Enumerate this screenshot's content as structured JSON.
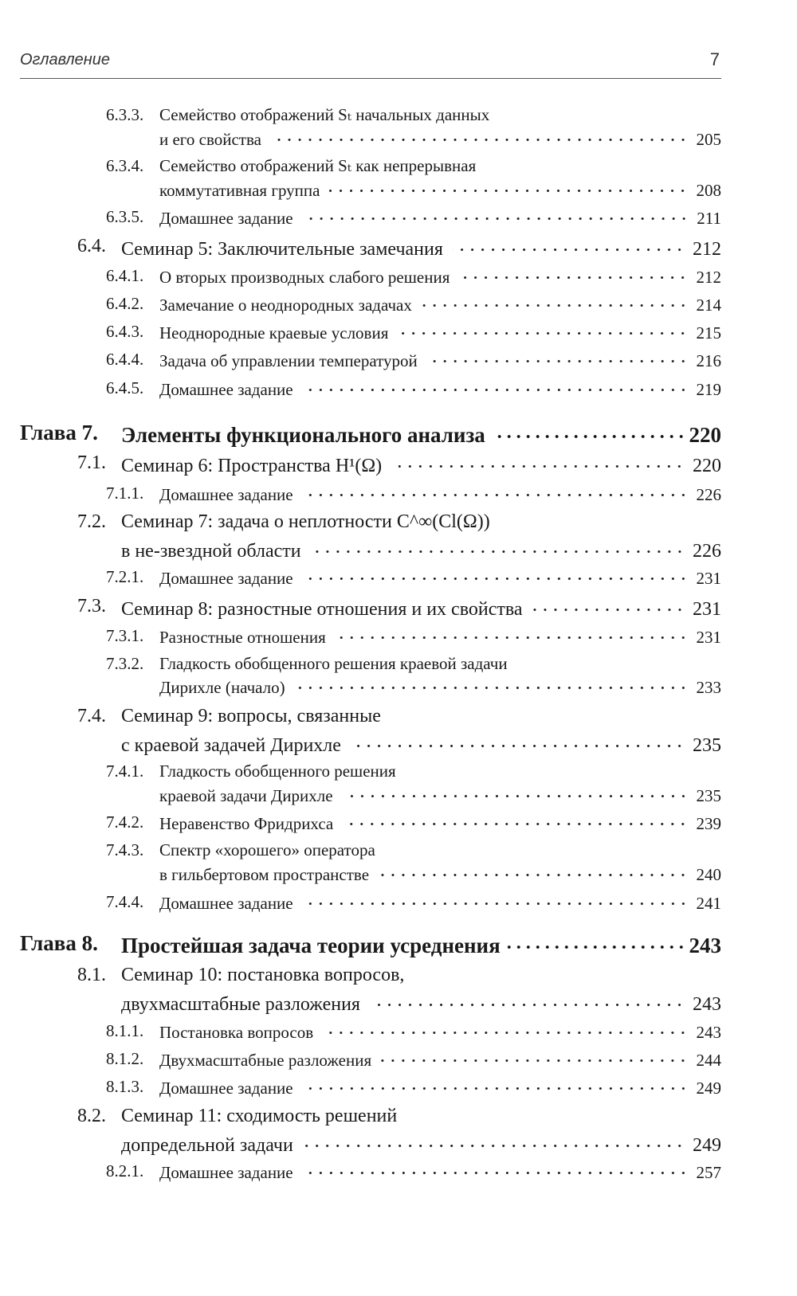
{
  "header": {
    "title": "Оглавление",
    "page_number": "7"
  },
  "toc": {
    "entries": [
      {
        "level": "sub",
        "num": "6.3.3.",
        "lines": [
          "Семейство отображений Sₜ начальных данных",
          "и его свойства"
        ],
        "page": "205"
      },
      {
        "level": "sub",
        "num": "6.3.4.",
        "lines": [
          "Семейство отображений Sₜ как непрерывная",
          "коммутативная группа"
        ],
        "page": "208"
      },
      {
        "level": "sub",
        "num": "6.3.5.",
        "lines": [
          "Домашнее задание"
        ],
        "page": "211"
      },
      {
        "level": "sec",
        "num": "6.4.",
        "lines": [
          "Семинар 5: Заключительные замечания"
        ],
        "page": "212"
      },
      {
        "level": "sub",
        "num": "6.4.1.",
        "lines": [
          "О вторых производных слабого решения"
        ],
        "page": "212"
      },
      {
        "level": "sub",
        "num": "6.4.2.",
        "lines": [
          "Замечание о неоднородных задачах"
        ],
        "page": "214"
      },
      {
        "level": "sub",
        "num": "6.4.3.",
        "lines": [
          "Неоднородные краевые условия"
        ],
        "page": "215"
      },
      {
        "level": "sub",
        "num": "6.4.4.",
        "lines": [
          "Задача об управлении температурой"
        ],
        "page": "216"
      },
      {
        "level": "sub",
        "num": "6.4.5.",
        "lines": [
          "Домашнее задание"
        ],
        "page": "219"
      },
      {
        "level": "ch",
        "num": "Глава 7.",
        "lines": [
          "Элементы функционального анализа"
        ],
        "page": "220"
      },
      {
        "level": "sec",
        "num": "7.1.",
        "lines": [
          "Семинар 6: Пространства H¹(Ω)"
        ],
        "page": "220"
      },
      {
        "level": "sub",
        "num": "7.1.1.",
        "lines": [
          "Домашнее задание"
        ],
        "page": "226"
      },
      {
        "level": "sec",
        "num": "7.2.",
        "lines": [
          "Семинар 7: задача о неплотности C^∞(Cl(Ω))",
          "в не-звездной области"
        ],
        "page": "226"
      },
      {
        "level": "sub",
        "num": "7.2.1.",
        "lines": [
          "Домашнее задание"
        ],
        "page": "231"
      },
      {
        "level": "sec",
        "num": "7.3.",
        "lines": [
          "Семинар 8: разностные отношения и их свойства"
        ],
        "page": "231"
      },
      {
        "level": "sub",
        "num": "7.3.1.",
        "lines": [
          "Разностные отношения"
        ],
        "page": "231"
      },
      {
        "level": "sub",
        "num": "7.3.2.",
        "lines": [
          "Гладкость обобщенного решения краевой задачи",
          "Дирихле (начало)"
        ],
        "page": "233"
      },
      {
        "level": "sec",
        "num": "7.4.",
        "lines": [
          "Семинар 9: вопросы, связанные",
          "с краевой задачей Дирихле"
        ],
        "page": "235"
      },
      {
        "level": "sub",
        "num": "7.4.1.",
        "lines": [
          "Гладкость обобщенного решения",
          "краевой задачи Дирихле"
        ],
        "page": "235"
      },
      {
        "level": "sub",
        "num": "7.4.2.",
        "lines": [
          "Неравенство Фридрихса"
        ],
        "page": "239"
      },
      {
        "level": "sub",
        "num": "7.4.3.",
        "lines": [
          "Спектр «хорошего» оператора",
          "в гильбертовом пространстве"
        ],
        "page": "240"
      },
      {
        "level": "sub",
        "num": "7.4.4.",
        "lines": [
          "Домашнее задание"
        ],
        "page": "241"
      },
      {
        "level": "ch",
        "num": "Глава 8.",
        "lines": [
          "Простейшая задача теории усреднения"
        ],
        "page": "243"
      },
      {
        "level": "sec",
        "num": "8.1.",
        "lines": [
          "Семинар 10: постановка вопросов,",
          "двухмасштабные разложения"
        ],
        "page": "243"
      },
      {
        "level": "sub",
        "num": "8.1.1.",
        "lines": [
          "Постановка вопросов"
        ],
        "page": "243"
      },
      {
        "level": "sub",
        "num": "8.1.2.",
        "lines": [
          "Двухмасштабные разложения"
        ],
        "page": "244"
      },
      {
        "level": "sub",
        "num": "8.1.3.",
        "lines": [
          "Домашнее задание"
        ],
        "page": "249"
      },
      {
        "level": "sec",
        "num": "8.2.",
        "lines": [
          "Семинар 11: сходимость решений",
          "допредельной задачи"
        ],
        "page": "249"
      },
      {
        "level": "sub",
        "num": "8.2.1.",
        "lines": [
          "Домашнее задание"
        ],
        "page": "257"
      }
    ]
  }
}
